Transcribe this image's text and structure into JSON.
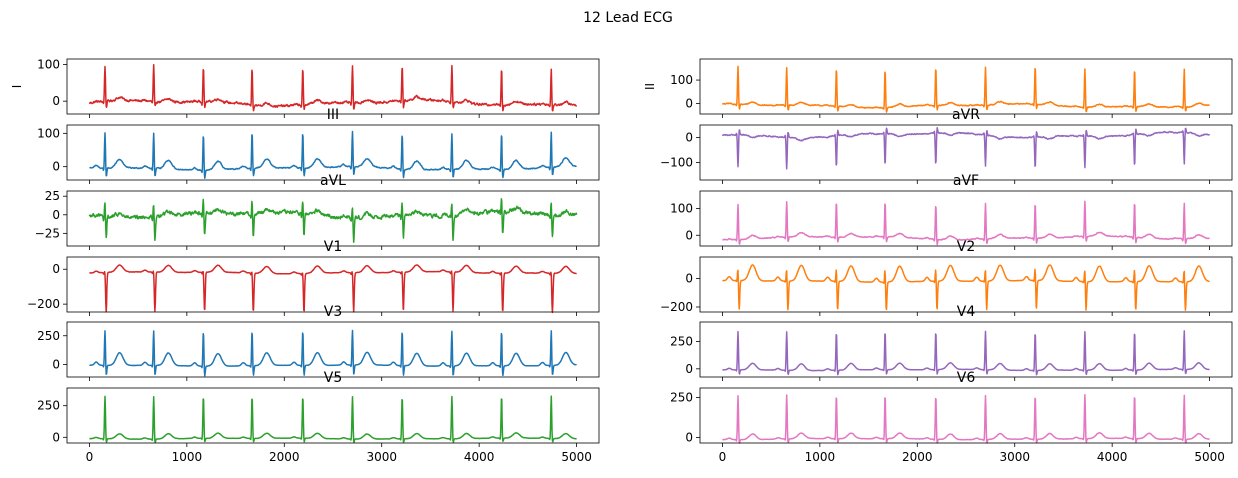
{
  "chart_data": {
    "type": "line",
    "title": "12 Lead ECG",
    "xlim": [
      -230,
      5230
    ],
    "x_ticks": [
      0,
      1000,
      2000,
      3000,
      4000,
      5000
    ],
    "beat_positions": [
      160,
      660,
      1170,
      1670,
      2190,
      2700,
      3210,
      3720,
      4230,
      4740
    ],
    "samples": 5000,
    "leads": [
      {
        "name": "I",
        "title": "",
        "ylabel": "I",
        "col": 0,
        "row": 0,
        "color": "#d62728",
        "ylim": [
          -35,
          115
        ],
        "y_ticks": [
          0,
          100
        ],
        "r_amp": 100,
        "q": -8,
        "s": -20,
        "t_amp": 8,
        "baseline": -5,
        "noise": 6,
        "wander": 6
      },
      {
        "name": "II",
        "title": "",
        "ylabel": "II",
        "col": 1,
        "row": 0,
        "color": "#ff7f0e",
        "ylim": [
          -45,
          190
        ],
        "y_ticks": [
          0,
          100
        ],
        "r_amp": 165,
        "q": -10,
        "s": -25,
        "t_amp": 12,
        "baseline": -10,
        "noise": 4,
        "wander": 6
      },
      {
        "name": "III",
        "title": "III",
        "ylabel": "",
        "col": 0,
        "row": 1,
        "color": "#1f77b4",
        "ylim": [
          -40,
          125
        ],
        "y_ticks": [
          0,
          100
        ],
        "r_amp": 110,
        "q": -10,
        "s": -28,
        "t_amp": 26,
        "baseline": -5,
        "noise": 3,
        "wander": 4
      },
      {
        "name": "aVR",
        "title": "aVR",
        "ylabel": "",
        "col": 1,
        "row": 1,
        "color": "#9467bd",
        "ylim": [
          -170,
          50
        ],
        "y_ticks": [
          -100,
          0
        ],
        "r_amp": -130,
        "q": 10,
        "s": 25,
        "t_amp": -10,
        "baseline": 10,
        "noise": 4,
        "wander": 8
      },
      {
        "name": "aVL",
        "title": "aVL",
        "ylabel": "",
        "col": 0,
        "row": 2,
        "color": "#2ca02c",
        "ylim": [
          -42,
          32
        ],
        "y_ticks": [
          -25,
          0,
          25
        ],
        "r_amp": 20,
        "q": -6,
        "s": -32,
        "t_amp": 5,
        "baseline": 0,
        "noise": 5,
        "wander": 3
      },
      {
        "name": "aVF",
        "title": "aVF",
        "ylabel": "",
        "col": 1,
        "row": 2,
        "color": "#e377c2",
        "ylim": [
          -40,
          165
        ],
        "y_ticks": [
          0,
          100
        ],
        "r_amp": 135,
        "q": -10,
        "s": -22,
        "t_amp": 14,
        "baseline": -10,
        "noise": 3,
        "wander": 5
      },
      {
        "name": "V1",
        "title": "V1",
        "ylabel": "",
        "col": 0,
        "row": 3,
        "color": "#d62728",
        "ylim": [
          -245,
          70
        ],
        "y_ticks": [
          -200,
          0
        ],
        "r_amp": 20,
        "q": -10,
        "s": -225,
        "t_amp": 40,
        "baseline": -20,
        "noise": 2,
        "wander": 4
      },
      {
        "name": "V2",
        "title": "V2",
        "ylabel": "",
        "col": 1,
        "row": 3,
        "color": "#ff7f0e",
        "ylim": [
          -235,
          150
        ],
        "y_ticks": [
          -200,
          0
        ],
        "r_amp": 100,
        "q": -10,
        "s": -205,
        "t_amp": 110,
        "baseline": -20,
        "noise": 2,
        "wander": 4
      },
      {
        "name": "V3",
        "title": "V3",
        "ylabel": "",
        "col": 0,
        "row": 4,
        "color": "#1f77b4",
        "ylim": [
          -110,
          370
        ],
        "y_ticks": [
          0,
          250
        ],
        "r_amp": 315,
        "q": -20,
        "s": -95,
        "t_amp": 110,
        "baseline": -10,
        "noise": 2,
        "wander": 4
      },
      {
        "name": "V4",
        "title": "V4",
        "ylabel": "",
        "col": 1,
        "row": 4,
        "color": "#9467bd",
        "ylim": [
          -75,
          430
        ],
        "y_ticks": [
          0,
          250
        ],
        "r_amp": 360,
        "q": -15,
        "s": -50,
        "t_amp": 60,
        "baseline": -10,
        "noise": 2,
        "wander": 4
      },
      {
        "name": "V5",
        "title": "V5",
        "ylabel": "",
        "col": 0,
        "row": 5,
        "color": "#2ca02c",
        "ylim": [
          -45,
          390
        ],
        "y_ticks": [
          0,
          250
        ],
        "r_amp": 340,
        "q": -15,
        "s": -35,
        "t_amp": 40,
        "baseline": -10,
        "noise": 2,
        "wander": 3
      },
      {
        "name": "V6",
        "title": "V6",
        "ylabel": "",
        "col": 1,
        "row": 5,
        "color": "#e377c2",
        "ylim": [
          -35,
          310
        ],
        "y_ticks": [
          0,
          250
        ],
        "r_amp": 280,
        "q": -12,
        "s": -30,
        "t_amp": 35,
        "baseline": -10,
        "noise": 2,
        "wander": 3
      }
    ]
  }
}
